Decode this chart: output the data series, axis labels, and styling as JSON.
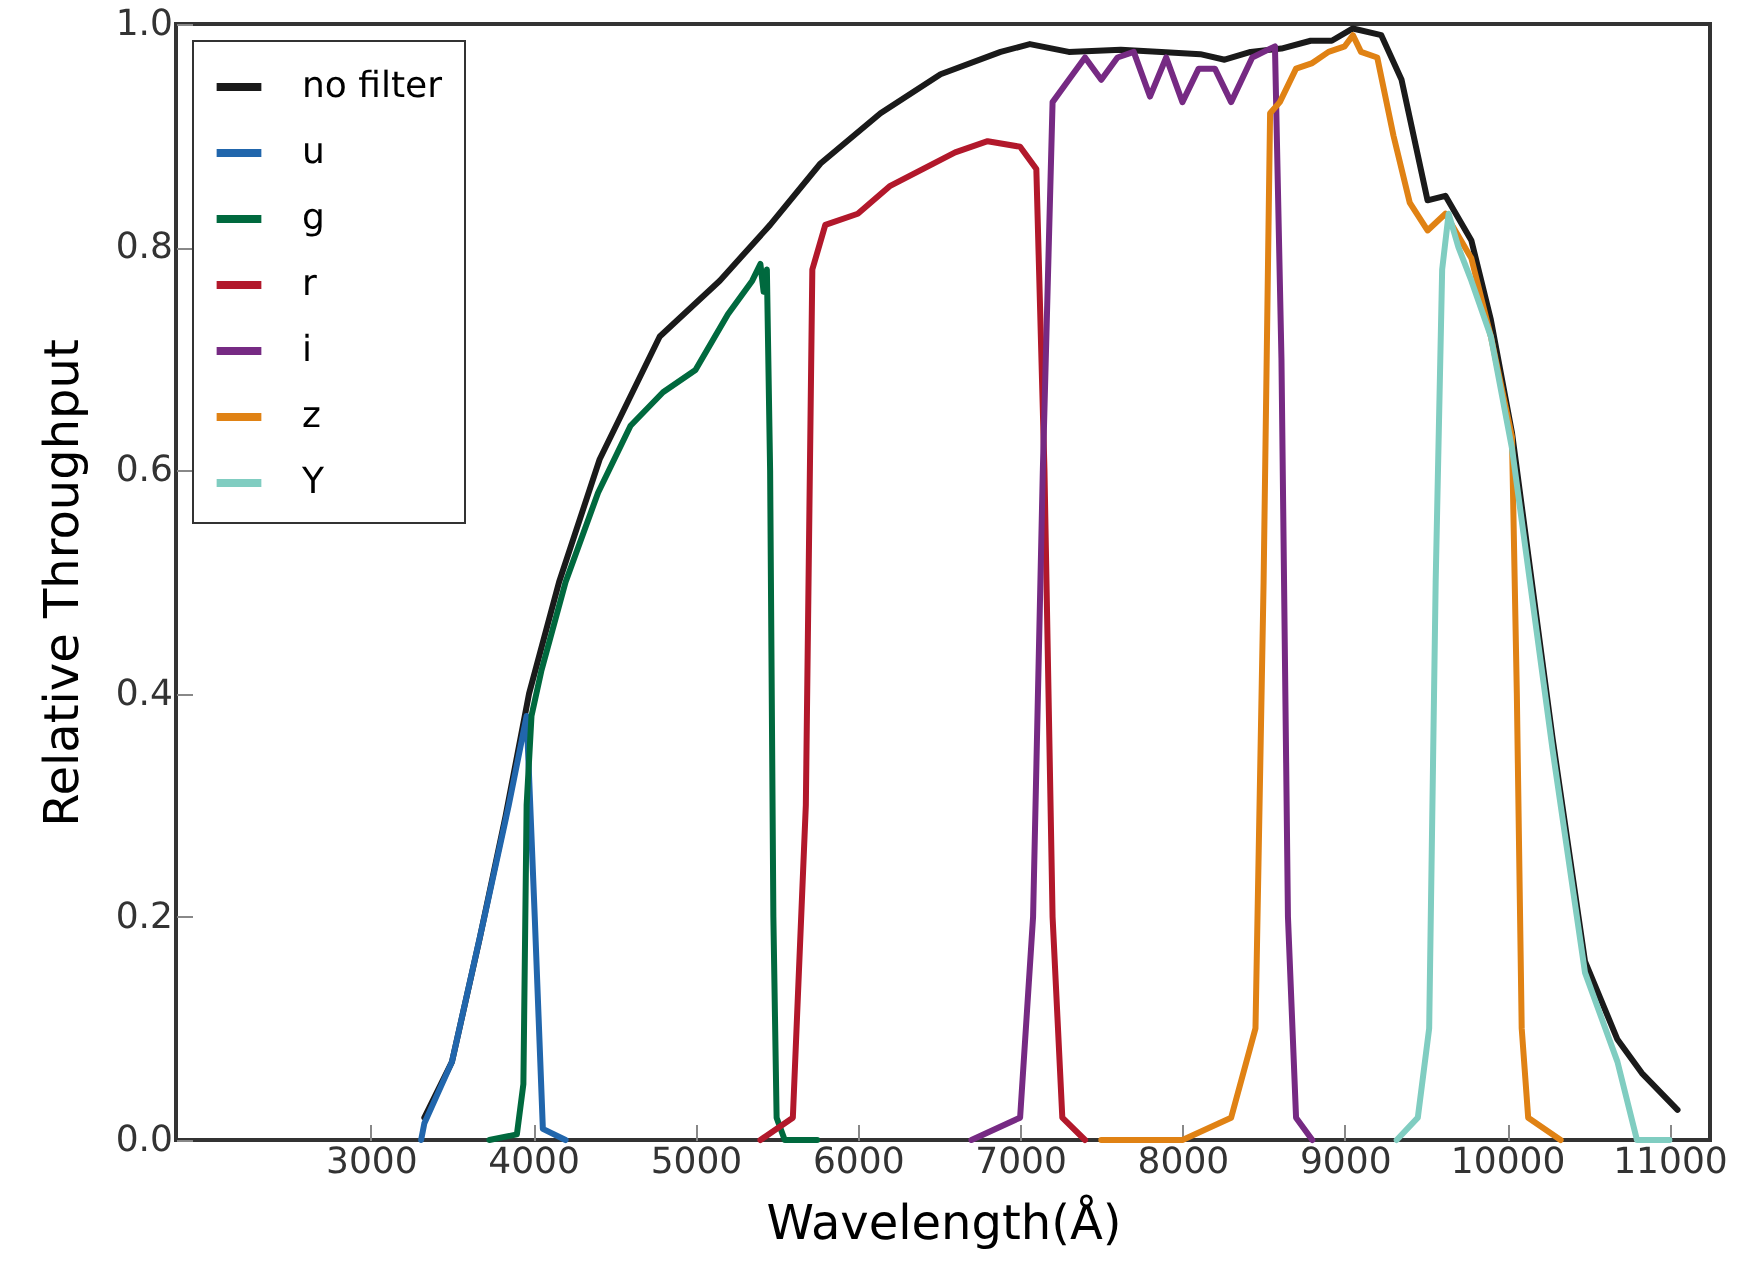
{
  "chart_data": {
    "type": "line",
    "xlabel": "Wavelength(Å)",
    "ylabel": "Relative Throughput",
    "xlim": [
      1800,
      11250
    ],
    "xticks": [
      3000,
      4000,
      5000,
      6000,
      7000,
      8000,
      9000,
      10000,
      11000
    ],
    "ylim": [
      0,
      1
    ],
    "yticks": [
      {
        "value": 0,
        "label": "0.0"
      },
      {
        "value": 0.2,
        "label": "0.2"
      },
      {
        "value": 0.4,
        "label": "0.4"
      },
      {
        "value": 0.6,
        "label": "0.6"
      },
      {
        "value": 0.8,
        "label": "0.8"
      },
      {
        "value": 1,
        "label": "1.0"
      }
    ],
    "grid": false,
    "legend": "top left",
    "line_style": "solid",
    "marker": "none",
    "series": [
      {
        "name": "no filter",
        "color": "#1a1a1a",
        "x": [
          3330,
          3500,
          3670,
          3830,
          3975,
          4160,
          4410,
          4780,
          5150,
          5460,
          5770,
          6140,
          6510,
          6880,
          7060,
          7300,
          7620,
          7870,
          8110,
          8260,
          8420,
          8610,
          8790,
          8920,
          9050,
          9225,
          9350,
          9510,
          9620,
          9780,
          9900,
          10030,
          10280,
          10480,
          10680,
          10830,
          11050
        ],
        "values": [
          0.02,
          0.07,
          0.18,
          0.29,
          0.4,
          0.5,
          0.61,
          0.72,
          0.77,
          0.82,
          0.875,
          0.92,
          0.955,
          0.975,
          0.982,
          0.975,
          0.977,
          0.975,
          0.973,
          0.968,
          0.975,
          0.978,
          0.985,
          0.985,
          0.996,
          0.99,
          0.95,
          0.842,
          0.846,
          0.806,
          0.735,
          0.634,
          0.36,
          0.16,
          0.09,
          0.06,
          0.027
        ]
      },
      {
        "name": "u",
        "color": "#2166ac",
        "x": [
          3310,
          3330,
          3500,
          3700,
          3850,
          3960,
          4010,
          4060,
          4200
        ],
        "values": [
          0.0,
          0.015,
          0.07,
          0.2,
          0.3,
          0.38,
          0.2,
          0.01,
          0.0
        ]
      },
      {
        "name": "g",
        "color": "#00693e",
        "x": [
          3730,
          3900,
          3940,
          3960,
          3990,
          4050,
          4200,
          4400,
          4600,
          4800,
          5000,
          5200,
          5350,
          5400,
          5420,
          5440,
          5460,
          5480,
          5500,
          5550,
          5750
        ],
        "values": [
          0.0,
          0.005,
          0.05,
          0.3,
          0.38,
          0.42,
          0.5,
          0.58,
          0.64,
          0.67,
          0.69,
          0.74,
          0.77,
          0.785,
          0.76,
          0.78,
          0.6,
          0.2,
          0.02,
          0.0,
          0.0
        ]
      },
      {
        "name": "r",
        "color": "#b2182b",
        "x": [
          5400,
          5600,
          5680,
          5720,
          5800,
          6000,
          6200,
          6400,
          6600,
          6800,
          7000,
          7100,
          7150,
          7200,
          7260,
          7400
        ],
        "values": [
          0.0,
          0.02,
          0.3,
          0.78,
          0.82,
          0.83,
          0.855,
          0.87,
          0.885,
          0.895,
          0.89,
          0.87,
          0.6,
          0.2,
          0.02,
          0.0
        ]
      },
      {
        "name": "i",
        "color": "#762a83",
        "x": [
          6700,
          7000,
          7080,
          7140,
          7200,
          7300,
          7400,
          7500,
          7600,
          7700,
          7800,
          7900,
          8000,
          8100,
          8200,
          8300,
          8430,
          8570,
          8610,
          8650,
          8700,
          8800
        ],
        "values": [
          0.0,
          0.02,
          0.2,
          0.6,
          0.93,
          0.95,
          0.97,
          0.95,
          0.97,
          0.975,
          0.935,
          0.97,
          0.93,
          0.96,
          0.96,
          0.93,
          0.97,
          0.98,
          0.7,
          0.2,
          0.02,
          0.0
        ]
      },
      {
        "name": "z",
        "color": "#e08214",
        "x": [
          7500,
          8000,
          8300,
          8450,
          8500,
          8540,
          8600,
          8700,
          8800,
          8900,
          9000,
          9050,
          9100,
          9200,
          9300,
          9400,
          9510,
          9620,
          9780,
          9900,
          10030,
          10060,
          10090,
          10130,
          10330
        ],
        "values": [
          0.0,
          0.0,
          0.02,
          0.1,
          0.5,
          0.92,
          0.93,
          0.96,
          0.965,
          0.975,
          0.98,
          0.99,
          0.975,
          0.97,
          0.9,
          0.84,
          0.815,
          0.83,
          0.79,
          0.72,
          0.63,
          0.4,
          0.1,
          0.02,
          0.0
        ]
      },
      {
        "name": "Y",
        "color": "#80cdc1",
        "x": [
          9320,
          9450,
          9520,
          9560,
          9600,
          9640,
          9700,
          9780,
          9900,
          10030,
          10280,
          10480,
          10680,
          10800,
          11000
        ],
        "values": [
          0.0,
          0.02,
          0.1,
          0.5,
          0.78,
          0.83,
          0.8,
          0.77,
          0.72,
          0.62,
          0.35,
          0.15,
          0.07,
          0.0,
          0.0
        ]
      }
    ]
  }
}
